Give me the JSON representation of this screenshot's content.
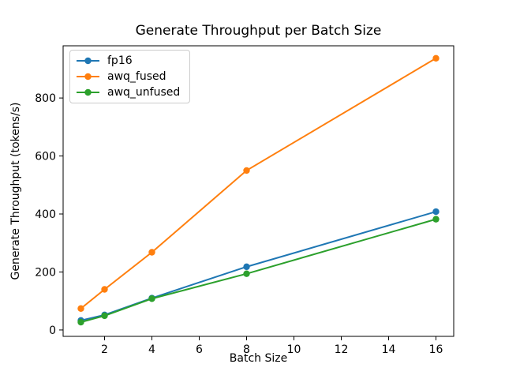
{
  "figure": {
    "background": "#ffffff",
    "text_color": "#000000",
    "spine_color": "#000000"
  },
  "chart_data": {
    "type": "line",
    "title": "Generate Throughput per Batch Size",
    "xlabel": "Batch Size",
    "ylabel": "Generate Throughput (tokens/s)",
    "x": [
      1,
      2,
      4,
      8,
      16
    ],
    "series": [
      {
        "name": "fp16",
        "color": "#1f77b4",
        "values": [
          33,
          52,
          110,
          218,
          408
        ]
      },
      {
        "name": "awq_fused",
        "color": "#ff7f0e",
        "values": [
          74,
          140,
          268,
          550,
          937
        ]
      },
      {
        "name": "awq_unfused",
        "color": "#2ca02c",
        "values": [
          27,
          49,
          108,
          194,
          382
        ]
      }
    ],
    "xticks": [
      2,
      4,
      6,
      8,
      10,
      12,
      14,
      16
    ],
    "yticks": [
      0,
      200,
      400,
      600,
      800
    ],
    "xlim": [
      0.25,
      16.75
    ],
    "ylim": [
      -22,
      980
    ],
    "grid": false,
    "legend_position": "upper-left",
    "marker": "circle",
    "line_width_pt": 1.5
  }
}
